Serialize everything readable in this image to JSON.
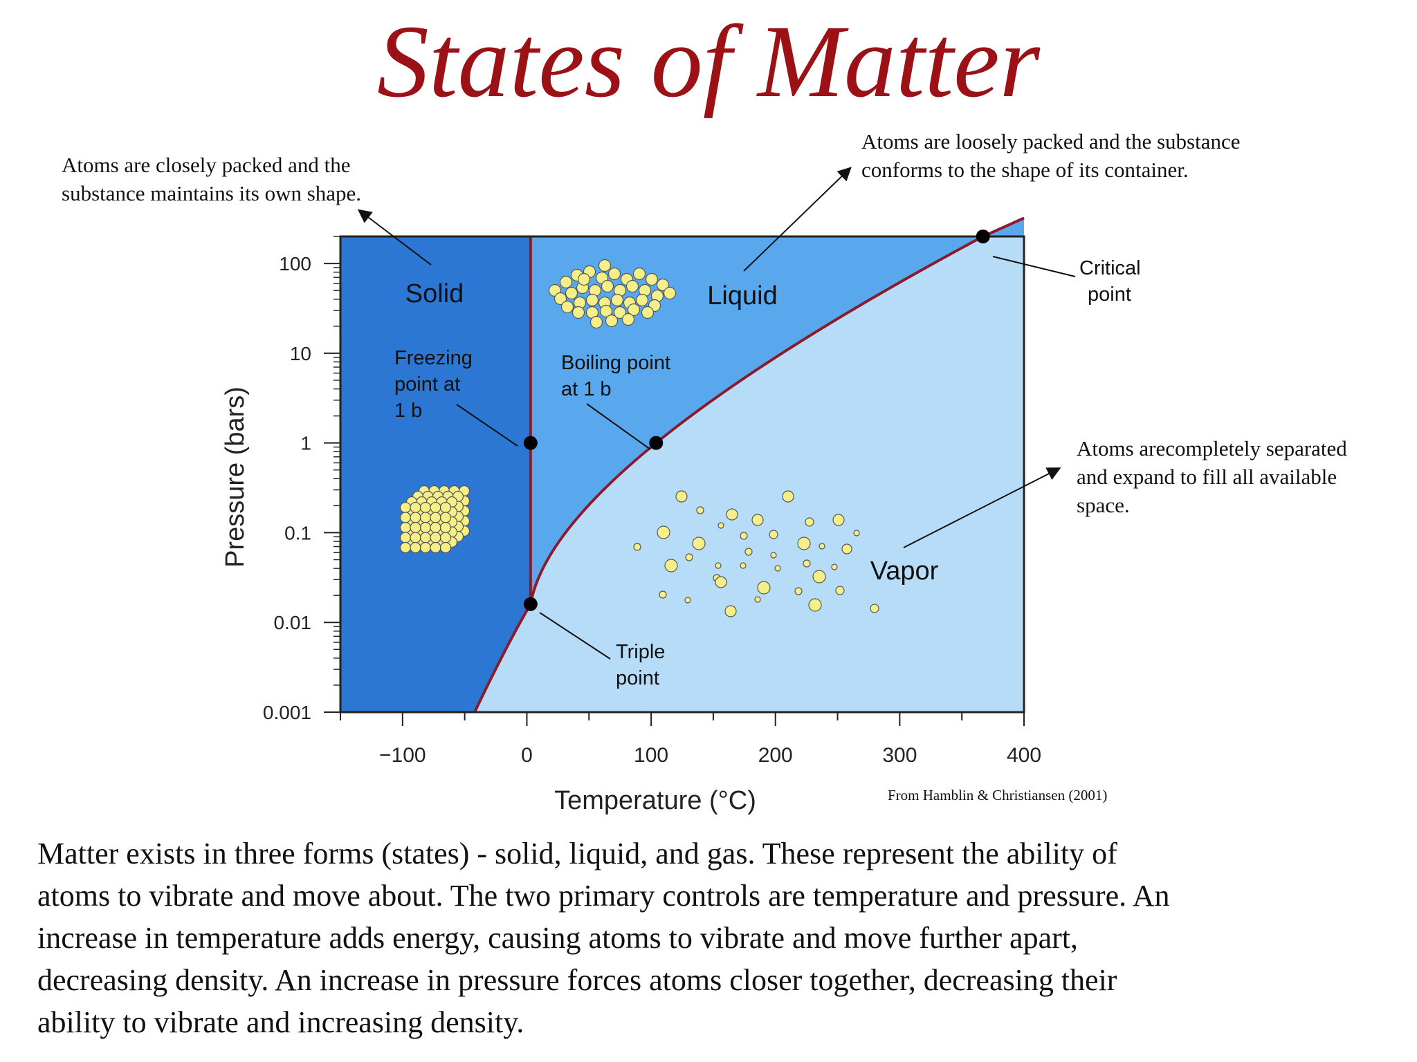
{
  "title": "States of Matter",
  "notes": {
    "solid": "Atoms are closely packed and the substance maintains its own shape.",
    "liquid": "Atoms are loosely packed and the substance conforms to the shape of its container.",
    "vapor": "Atoms arecompletely separated and expand to fill all available space."
  },
  "credit": "From Hamblin & Christiansen (2001)",
  "body": "Matter exists in three forms (states) - solid, liquid, and gas.  These represent the ability of\natoms to vibrate and move about.  The two primary controls are temperature and pressure.  An\nincrease in temperature adds energy, causing atoms to vibrate and move further apart,\ndecreasing density.  An increase in pressure forces atoms closer together, decreasing their\nability to vibrate and increasing density.",
  "colors": {
    "title": "#9b1116",
    "solid": "#2c77d3",
    "liquid": "#59a8ee",
    "vapor": "#b7dcf8",
    "boundary": "#8b1a2b",
    "atom": "#f5ef8a"
  },
  "chart_data": {
    "type": "phase-diagram",
    "xlabel": "Temperature (°C)",
    "ylabel": "Pressure (bars)",
    "y_scale": "log",
    "xlim": [
      -150,
      400
    ],
    "ylim": [
      0.001,
      200
    ],
    "x_ticks": [
      "−100",
      "0",
      "100",
      "200",
      "300",
      "400"
    ],
    "x_tick_values": [
      -100,
      0,
      100,
      200,
      300,
      400
    ],
    "y_ticks": [
      "100",
      "10",
      "1",
      "0.1",
      "0.01",
      "0.001"
    ],
    "y_tick_values": [
      100,
      10,
      1,
      0.1,
      0.01,
      0.001
    ],
    "regions": [
      {
        "name": "Solid",
        "label": "Solid"
      },
      {
        "name": "Liquid",
        "label": "Liquid"
      },
      {
        "name": "Vapor",
        "label": "Vapor"
      }
    ],
    "points": [
      {
        "name": "Freezing point at 1 b",
        "label": [
          "Freezing",
          "point at",
          "1 b"
        ],
        "x": 3,
        "y": 1
      },
      {
        "name": "Boiling point at 1 b",
        "label": [
          "Boiling point",
          "at 1 b"
        ],
        "x": 104,
        "y": 1
      },
      {
        "name": "Triple point",
        "label": [
          "Triple",
          "point"
        ],
        "x": 3,
        "y": 0.016
      },
      {
        "name": "Critical point",
        "label": [
          "Critical",
          "point"
        ],
        "x": 367,
        "y": 200
      }
    ]
  }
}
